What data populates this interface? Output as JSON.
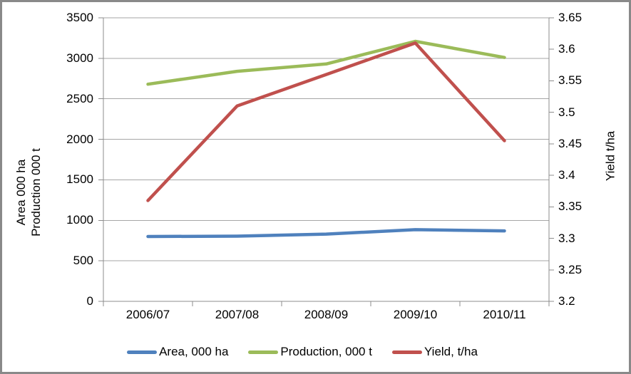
{
  "chart_data": {
    "type": "line",
    "title": "",
    "categories": [
      "2006/07",
      "2007/08",
      "2008/09",
      "2009/10",
      "2010/11"
    ],
    "series": [
      {
        "name": "Area, 000 ha",
        "axis": "left",
        "color": "#4F81BD",
        "values": [
          800,
          805,
          830,
          885,
          870
        ]
      },
      {
        "name": "Production, 000 t",
        "axis": "left",
        "color": "#9BBB59",
        "values": [
          2680,
          2840,
          2930,
          3210,
          3010
        ]
      },
      {
        "name": "Yield, t/ha",
        "axis": "right",
        "color": "#C0504D",
        "values": [
          3.36,
          3.51,
          3.56,
          3.61,
          3.455
        ]
      }
    ],
    "left_axis": {
      "title_lines": [
        "Area 000 ha",
        "Production 000 t"
      ],
      "min": 0,
      "max": 3500,
      "tick_labels": [
        "0",
        "500",
        "1000",
        "1500",
        "2000",
        "2500",
        "3000",
        "3500"
      ]
    },
    "right_axis": {
      "title": "Yield t/ha",
      "min": 3.2,
      "max": 3.65,
      "tick_labels": [
        "3.2",
        "3.25",
        "3.3",
        "3.35",
        "3.4",
        "3.45",
        "3.5",
        "3.55",
        "3.6",
        "3.65"
      ]
    },
    "legend": {
      "position": "bottom",
      "entries": [
        "Area, 000 ha",
        "Production, 000 t",
        "Yield, t/ha"
      ]
    },
    "grid": true,
    "styles": {
      "grid_color": "#A6A6A6",
      "axis_color": "#8C8C8C",
      "text_color": "#000000",
      "border_color": "#898989",
      "background": "#FFFFFF"
    }
  }
}
